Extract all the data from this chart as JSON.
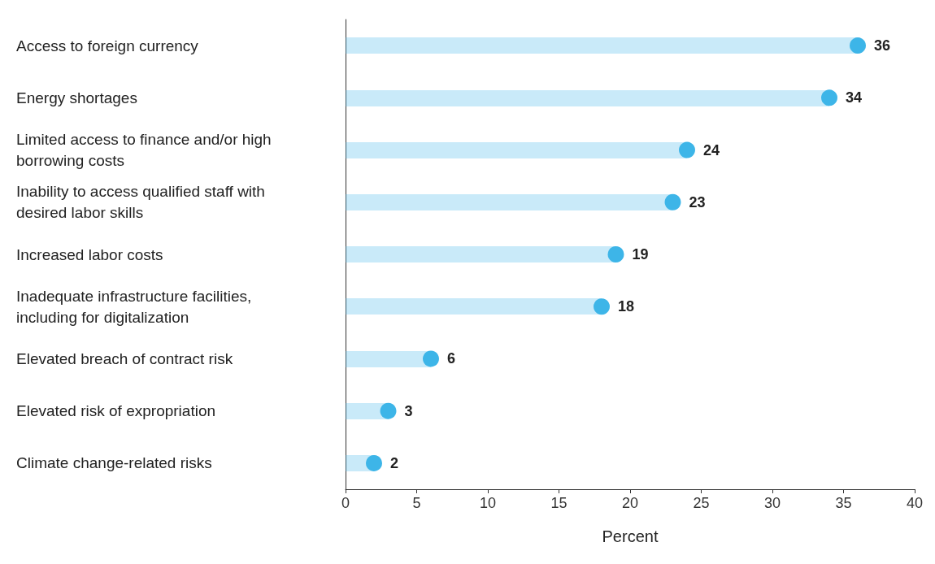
{
  "chart_data": {
    "type": "lollipop",
    "orientation": "horizontal",
    "xlabel": "Percent",
    "categories": [
      "Access to foreign currency",
      "Energy shortages",
      "Limited access to finance and/or high borrowing costs",
      "Inability to access qualified staff with desired labor skills",
      "Increased labor costs",
      "Inadequate infrastructure facilities, including for digitalization",
      "Elevated breach of contract risk",
      "Elevated risk of expropriation",
      "Climate change-related risks"
    ],
    "values": [
      36,
      34,
      24,
      23,
      19,
      18,
      6,
      3,
      2
    ],
    "color": "#3db5e8",
    "xlim": [
      0,
      40
    ],
    "xticks": [
      0,
      5,
      10,
      15,
      20,
      25,
      30,
      35,
      40
    ],
    "grid": false,
    "data_labels": true,
    "marker": "circle"
  }
}
